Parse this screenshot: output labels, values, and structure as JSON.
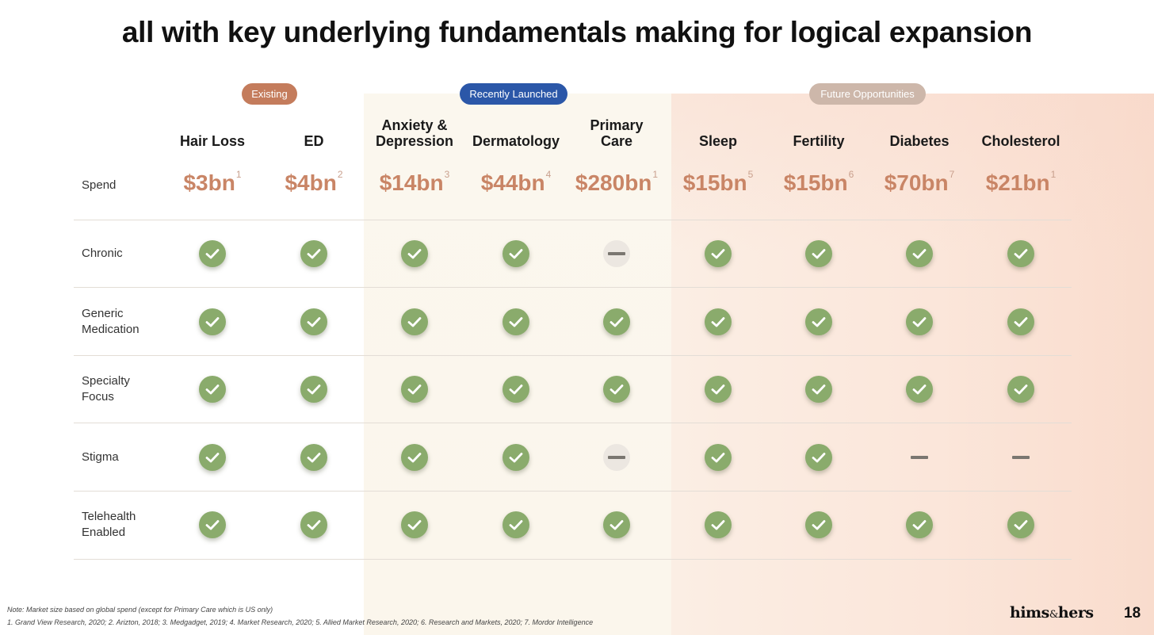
{
  "title": "all with key underlying fundamentals making for logical expansion",
  "groups": {
    "existing": "Existing",
    "recent": "Recently Launched",
    "future": "Future Opportunities"
  },
  "columns": [
    {
      "line1": "",
      "line2": "Hair Loss",
      "spend": "$3bn",
      "ref": "1"
    },
    {
      "line1": "",
      "line2": "ED",
      "spend": "$4bn",
      "ref": "2"
    },
    {
      "line1": "Anxiety &",
      "line2": "Depression",
      "spend": "$14bn",
      "ref": "3"
    },
    {
      "line1": "",
      "line2": "Dermatology",
      "spend": "$44bn",
      "ref": "4"
    },
    {
      "line1": "Primary",
      "line2": "Care",
      "spend": "$280bn",
      "ref": "1"
    },
    {
      "line1": "",
      "line2": "Sleep",
      "spend": "$15bn",
      "ref": "5"
    },
    {
      "line1": "",
      "line2": "Fertility",
      "spend": "$15bn",
      "ref": "6"
    },
    {
      "line1": "",
      "line2": "Diabetes",
      "spend": "$70bn",
      "ref": "7"
    },
    {
      "line1": "",
      "line2": "Cholesterol",
      "spend": "$21bn",
      "ref": "1"
    }
  ],
  "spend_label": "Spend",
  "rows": [
    {
      "line1": "Chronic",
      "line2": "",
      "values": [
        "check",
        "check",
        "check",
        "check",
        "dash",
        "check",
        "check",
        "check",
        "check"
      ]
    },
    {
      "line1": "Generic",
      "line2": "Medication",
      "values": [
        "check",
        "check",
        "check",
        "check",
        "check",
        "check",
        "check",
        "check",
        "check"
      ]
    },
    {
      "line1": "Specialty",
      "line2": "Focus",
      "values": [
        "check",
        "check",
        "check",
        "check",
        "check",
        "check",
        "check",
        "check",
        "check"
      ]
    },
    {
      "line1": "Stigma",
      "line2": "",
      "values": [
        "check",
        "check",
        "check",
        "check",
        "dash",
        "check",
        "check",
        "dash",
        "dash"
      ]
    },
    {
      "line1": "Telehealth",
      "line2": "Enabled",
      "values": [
        "check",
        "check",
        "check",
        "check",
        "check",
        "check",
        "check",
        "check",
        "check"
      ]
    }
  ],
  "footnotes": {
    "note": "Note: Market size based on global spend (except for Primary Care which is US only)",
    "sources": "1. Grand View Research, 2020; 2. Arizton, 2018; 3. Medgadget, 2019; 4. Market Research, 2020; 5. Allied Market Research, 2020; 6. Research and Markets, 2020; 7. Mordor Intelligence"
  },
  "brand": {
    "left": "hims",
    "amp": "&",
    "right": "hers"
  },
  "page_number": "18",
  "colors": {
    "check": "#8aab6c",
    "spend": "#c98566",
    "existing": "#c47c5c",
    "recent": "#2b57a8",
    "future": "#cdb7aa"
  }
}
